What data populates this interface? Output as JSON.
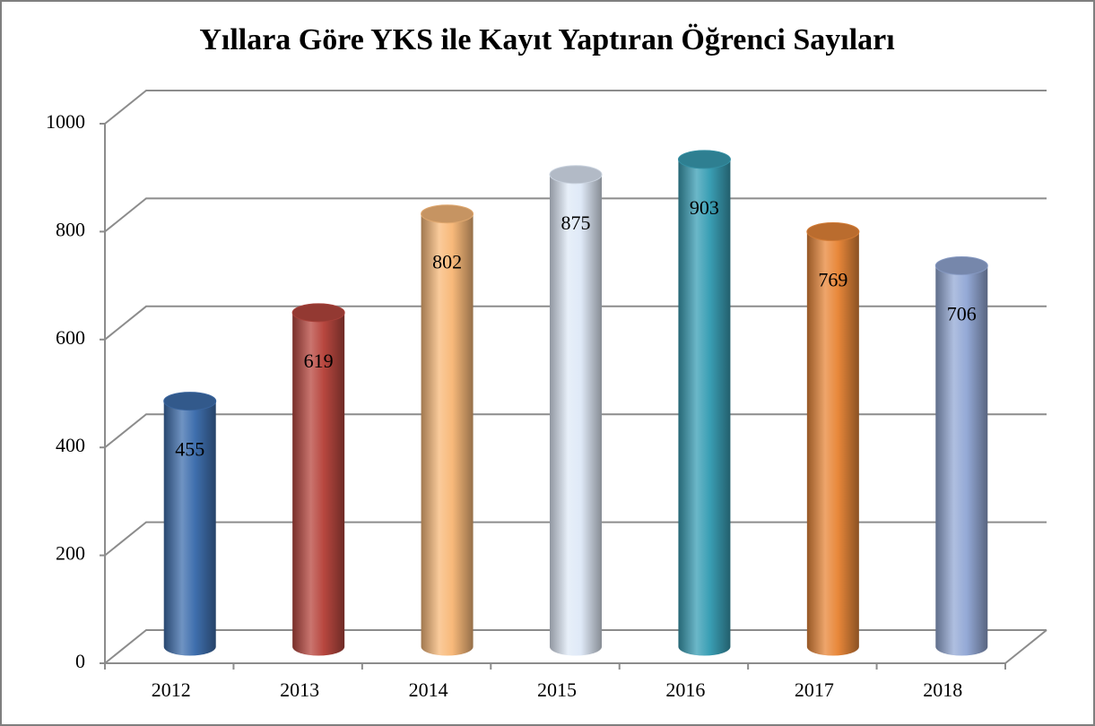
{
  "chart_data": {
    "type": "bar",
    "title": "Yıllara Göre YKS ile Kayıt Yaptıran Öğrenci Sayıları",
    "categories": [
      "2012",
      "2013",
      "2014",
      "2015",
      "2016",
      "2017",
      "2018"
    ],
    "values": [
      455,
      619,
      802,
      875,
      903,
      769,
      706
    ],
    "colors": [
      "#3f6fae",
      "#b8473f",
      "#f8b97a",
      "#dfe9f7",
      "#3a9fb5",
      "#e8873a",
      "#94a9d6"
    ],
    "ylim": [
      0,
      1000
    ],
    "yticks": [
      0,
      200,
      400,
      600,
      800,
      1000
    ],
    "grid": true
  }
}
